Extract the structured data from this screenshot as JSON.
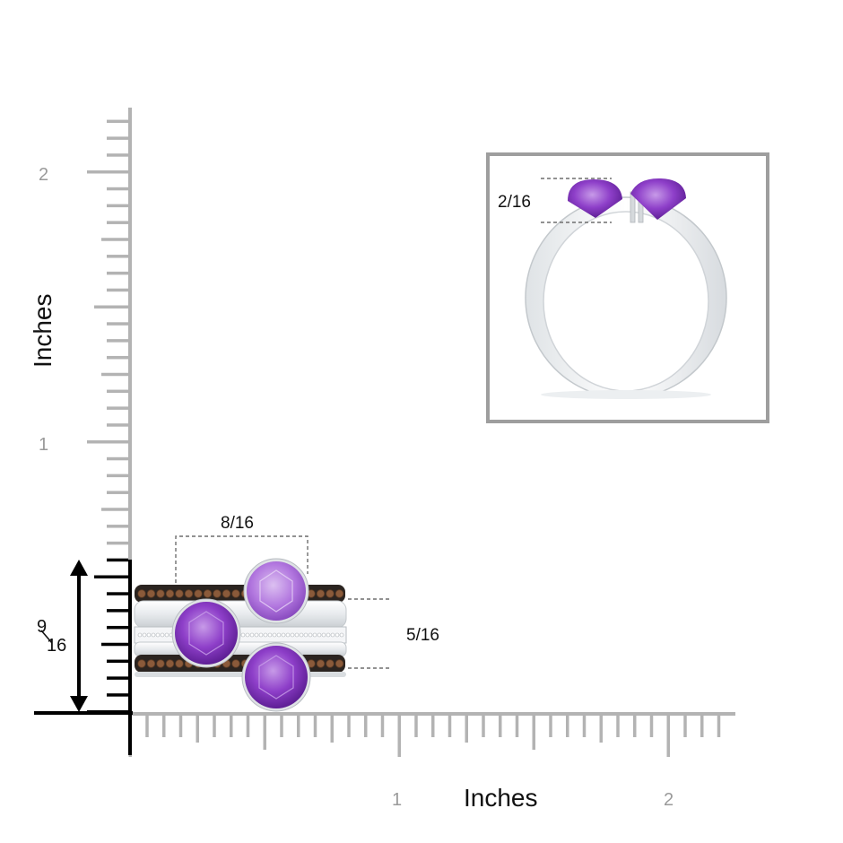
{
  "axes": {
    "y_title": "Inches",
    "x_title": "Inches",
    "y_tick_labels": [
      "2",
      "1"
    ],
    "x_tick_labels": [
      "1",
      "2"
    ],
    "color": "#b3b3b3"
  },
  "dimensions": {
    "top_width": "8/16",
    "right_height": "5/16",
    "left_height_num": "9",
    "left_height_den": "16",
    "inset_height": "2/16"
  },
  "colors": {
    "amethyst": "#8e3fc9",
    "amethyst_light": "#b77ee0",
    "metal": "#eef0f2",
    "metal_edge": "#bfc4c8",
    "coffee_diamond": "#8a5a3a",
    "black_band": "#2b2420",
    "inset_frame": "#9e9e9e"
  }
}
